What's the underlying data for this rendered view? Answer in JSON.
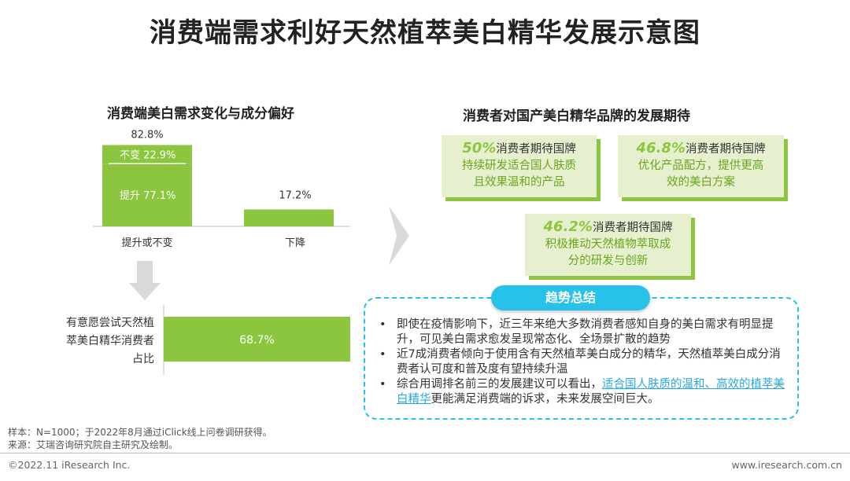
{
  "title": "消费端需求利好天然植萃美白精华发展示意图",
  "left_title": "消费端美白需求变化与成分偏好",
  "right_title": "消费者对国产美白精华品牌的发展期待",
  "colors": {
    "bar_green": "#8cc63f",
    "card_bg": "#e6f0cf",
    "accent_blue": "#27c1ea",
    "arrow_gray": "#d9d9d9"
  },
  "chart_data": [
    {
      "type": "bar",
      "title": "消费端美白需求变化与成分偏好",
      "categories": [
        "提升或不变",
        "下降"
      ],
      "values": [
        82.8,
        17.2
      ],
      "value_labels": [
        "82.8%",
        "17.2%"
      ],
      "stack_segments": [
        {
          "name": "不变",
          "value": 22.9,
          "label": "不变 22.9%"
        },
        {
          "name": "提升",
          "value": 77.1,
          "label": "提升 77.1%"
        }
      ],
      "ylim": [
        0,
        100
      ]
    },
    {
      "type": "bar",
      "orientation": "horizontal",
      "categories": [
        "有意愿尝试天然植萃美白精华消费者占比"
      ],
      "category_lines": [
        "有意愿尝试天然植",
        "萃美白精华消费者",
        "占比"
      ],
      "values": [
        68.7
      ],
      "value_labels": [
        "68.7%"
      ],
      "xlim": [
        0,
        100
      ]
    }
  ],
  "cards": [
    {
      "pct": "50%",
      "head": "消费者期待国牌",
      "line1": "持续研发适合国人肤质",
      "line2": "且效果温和的产品"
    },
    {
      "pct": "46.8%",
      "head": "消费者期待国牌",
      "line1": "优化产品配方，提供更高",
      "line2": "效的美白方案"
    },
    {
      "pct": "46.2%",
      "head": "消费者期待国牌",
      "line1": "积极推动天然植物萃取成",
      "line2": "分的研发与创新"
    }
  ],
  "trend": {
    "label": "趋势总结",
    "bullet": "•",
    "item1": "即使在疫情影响下，近三年来绝大多数消费者感知自身的美白需求有明显提升，可见美白需求愈发呈现常态化、全场景扩散的趋势",
    "item2": "近7成消费者倾向于使用含有天然植萃美白成分的精华，天然植萃美白成分消费者认可度和普及度有望持续升温",
    "item3_pre": "综合用调排名前三的发展建议可以看出，",
    "item3_link": "适合国人肤质的温和、高效的植萃美白精华",
    "item3_post": "更能满足消费端的诉求，未来发展空间巨大。"
  },
  "notes": {
    "sample": "样本：N=1000；于2022年8月通过iClick线上问卷调研获得。",
    "source": "来源：艾瑞咨询研究院自主研究及绘制。"
  },
  "footer": {
    "copyright": "©2022.11 iResearch Inc.",
    "url": "www.iresearch.com.cn"
  }
}
